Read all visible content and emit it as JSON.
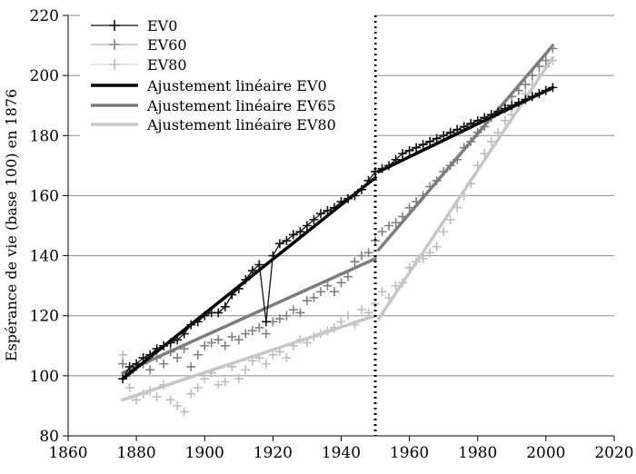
{
  "chart_data": {
    "type": "line",
    "title": "",
    "xlabel": "",
    "ylabel": "Espérance de vie (base 100) en 1876",
    "xlim": [
      1860,
      2020
    ],
    "ylim": [
      80,
      220
    ],
    "xticks": [
      "1860",
      "1880",
      "1900",
      "1920",
      "1940",
      "1960",
      "1980",
      "2000",
      "2020"
    ],
    "yticks": [
      "80",
      "100",
      "120",
      "140",
      "160",
      "180",
      "200",
      "220"
    ],
    "grid": "horizontal",
    "legend_position": "top-left",
    "vline_x": 1950,
    "series": [
      {
        "name": "EV0",
        "kind": "line-markers",
        "color": "#111111",
        "x": [
          1876,
          1878,
          1880,
          1882,
          1884,
          1886,
          1888,
          1890,
          1892,
          1894,
          1896,
          1898,
          1900,
          1902,
          1904,
          1906,
          1908,
          1910,
          1912,
          1914,
          1916,
          1918,
          1920,
          1922,
          1924,
          1926,
          1928,
          1930,
          1932,
          1934,
          1936,
          1938,
          1940,
          1942,
          1944,
          1946,
          1948,
          1950,
          1952,
          1954,
          1956,
          1958,
          1960,
          1962,
          1964,
          1966,
          1968,
          1970,
          1972,
          1974,
          1976,
          1978,
          1980,
          1982,
          1984,
          1986,
          1988,
          1990,
          1992,
          1994,
          1996,
          1998,
          2000,
          2002
        ],
        "y": [
          99,
          103,
          104,
          106,
          107,
          109,
          110,
          111,
          112,
          114,
          117,
          118,
          120,
          121,
          121,
          123,
          127,
          129,
          132,
          135,
          137,
          118,
          140,
          144,
          145,
          147,
          148,
          150,
          152,
          154,
          155,
          156,
          158,
          159,
          160,
          162,
          165,
          168,
          169,
          170,
          172,
          174,
          175,
          176,
          177,
          178,
          179,
          180,
          181,
          182,
          183,
          184,
          185,
          186,
          187,
          188,
          189,
          190,
          191,
          192,
          193,
          194,
          195,
          196
        ]
      },
      {
        "name": "EV60",
        "kind": "markers",
        "color": "#808080",
        "x": [
          1876,
          1878,
          1880,
          1882,
          1884,
          1886,
          1888,
          1890,
          1892,
          1894,
          1896,
          1898,
          1900,
          1902,
          1904,
          1906,
          1908,
          1910,
          1912,
          1914,
          1916,
          1918,
          1920,
          1922,
          1924,
          1926,
          1928,
          1930,
          1932,
          1934,
          1936,
          1938,
          1940,
          1942,
          1944,
          1946,
          1948,
          1950,
          1952,
          1954,
          1956,
          1958,
          1960,
          1962,
          1964,
          1966,
          1968,
          1970,
          1972,
          1974,
          1976,
          1978,
          1980,
          1982,
          1984,
          1986,
          1988,
          1990,
          1992,
          1994,
          1996,
          1998,
          2000,
          2002
        ],
        "y": [
          104,
          101,
          103,
          104,
          102,
          106,
          104,
          108,
          106,
          109,
          103,
          107,
          110,
          111,
          112,
          110,
          113,
          112,
          114,
          115,
          116,
          114,
          118,
          119,
          120,
          122,
          121,
          125,
          126,
          128,
          130,
          128,
          131,
          133,
          138,
          140,
          141,
          145,
          148,
          150,
          151,
          153,
          156,
          158,
          160,
          163,
          165,
          168,
          170,
          172,
          176,
          178,
          181,
          183,
          186,
          188,
          190,
          193,
          195,
          197,
          200,
          203,
          205,
          209
        ]
      },
      {
        "name": "EV80",
        "kind": "markers",
        "color": "#bdbdbd",
        "x": [
          1876,
          1878,
          1880,
          1882,
          1884,
          1886,
          1888,
          1890,
          1892,
          1894,
          1896,
          1898,
          1900,
          1902,
          1904,
          1906,
          1908,
          1910,
          1912,
          1914,
          1916,
          1918,
          1920,
          1922,
          1924,
          1926,
          1928,
          1930,
          1932,
          1934,
          1936,
          1938,
          1940,
          1942,
          1944,
          1946,
          1948,
          1950,
          1952,
          1954,
          1956,
          1958,
          1960,
          1962,
          1964,
          1966,
          1968,
          1970,
          1972,
          1974,
          1976,
          1978,
          1980,
          1982,
          1984,
          1986,
          1988,
          1990,
          1992,
          1994,
          1996,
          1998,
          2000,
          2002
        ],
        "y": [
          107,
          96,
          92,
          94,
          95,
          93,
          97,
          92,
          90,
          88,
          94,
          96,
          99,
          101,
          97,
          98,
          103,
          99,
          102,
          105,
          106,
          104,
          107,
          108,
          106,
          110,
          112,
          111,
          113,
          114,
          115,
          116,
          118,
          120,
          117,
          122,
          121,
          124,
          128,
          126,
          130,
          131,
          136,
          138,
          139,
          141,
          143,
          148,
          152,
          156,
          160,
          164,
          170,
          174,
          178,
          181,
          185,
          187,
          190,
          194,
          197,
          200,
          203,
          205
        ]
      },
      {
        "name": "Ajustement linéaire EV0",
        "kind": "fit",
        "color": "#000000",
        "x": [
          1876,
          1950,
          1951,
          2002
        ],
        "y": [
          99,
          166,
          168,
          196
        ]
      },
      {
        "name": "Ajustement linéaire EV65",
        "kind": "fit",
        "color": "#7d7d7d",
        "x": [
          1876,
          1950,
          1951,
          2002
        ],
        "y": [
          101,
          139,
          142,
          210
        ]
      },
      {
        "name": "Ajustement linéaire EV80",
        "kind": "fit",
        "color": "#c6c6c6",
        "x": [
          1876,
          1950,
          1951,
          2002
        ],
        "y": [
          92,
          120,
          119,
          206
        ]
      }
    ]
  }
}
